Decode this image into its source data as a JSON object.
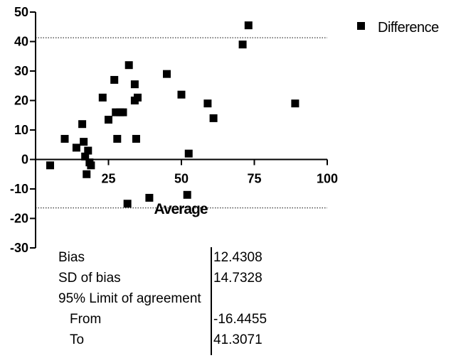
{
  "chart_data": {
    "type": "scatter",
    "xlabel": "Average",
    "ylabel": "",
    "xlim": [
      0,
      100
    ],
    "ylim": [
      -30,
      50
    ],
    "xticks": [
      "25",
      "50",
      "75",
      "100"
    ],
    "yticks": [
      "50",
      "40",
      "30",
      "20",
      "10",
      "0",
      "-10",
      "-20",
      "-30"
    ],
    "reference_lines": [
      {
        "y": 41.3071
      },
      {
        "y": -16.4455
      }
    ],
    "series": [
      {
        "name": "Difference",
        "marker": "square",
        "color": "#000000",
        "points": [
          {
            "x": 5,
            "y": -2
          },
          {
            "x": 10,
            "y": 7
          },
          {
            "x": 14,
            "y": 4
          },
          {
            "x": 16,
            "y": 12
          },
          {
            "x": 16.5,
            "y": 6
          },
          {
            "x": 17,
            "y": 1
          },
          {
            "x": 17.5,
            "y": -5
          },
          {
            "x": 18,
            "y": 3
          },
          {
            "x": 18.5,
            "y": -1
          },
          {
            "x": 19,
            "y": -2
          },
          {
            "x": 23,
            "y": 21
          },
          {
            "x": 25,
            "y": 13.5
          },
          {
            "x": 27,
            "y": 27
          },
          {
            "x": 27.5,
            "y": 16
          },
          {
            "x": 28,
            "y": 7
          },
          {
            "x": 29,
            "y": 16
          },
          {
            "x": 30,
            "y": 16
          },
          {
            "x": 31.5,
            "y": -15
          },
          {
            "x": 32,
            "y": 32
          },
          {
            "x": 34,
            "y": 25.5
          },
          {
            "x": 34,
            "y": 20
          },
          {
            "x": 34.5,
            "y": 7
          },
          {
            "x": 35,
            "y": 21
          },
          {
            "x": 39,
            "y": -13
          },
          {
            "x": 45,
            "y": 29
          },
          {
            "x": 50,
            "y": 22
          },
          {
            "x": 52,
            "y": -12
          },
          {
            "x": 52.5,
            "y": 2
          },
          {
            "x": 59,
            "y": 19
          },
          {
            "x": 61,
            "y": 14
          },
          {
            "x": 71,
            "y": 39
          },
          {
            "x": 73,
            "y": 45.5
          },
          {
            "x": 89,
            "y": 19
          }
        ]
      }
    ],
    "legend": {
      "position": "top-right",
      "entries": [
        "Difference"
      ]
    },
    "grid": false
  },
  "stats_table": {
    "rows": [
      {
        "label": "Bias",
        "value": "12.4308",
        "indent": false
      },
      {
        "label": "SD of bias",
        "value": "14.7328",
        "indent": false
      },
      {
        "label": "95% Limit of agreement",
        "value": "",
        "indent": false
      },
      {
        "label": "From",
        "value": "-16.4455",
        "indent": true
      },
      {
        "label": "To",
        "value": "41.3071",
        "indent": true
      }
    ]
  }
}
